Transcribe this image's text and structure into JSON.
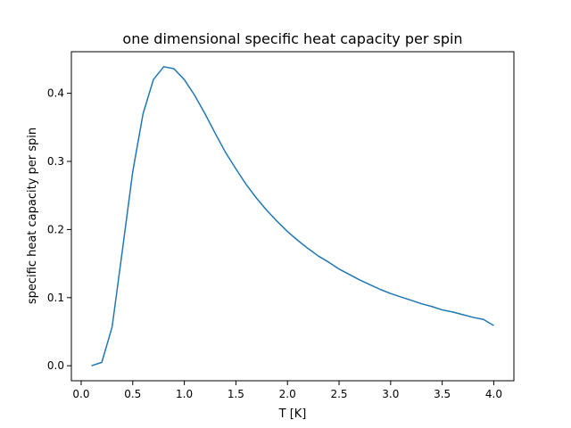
{
  "chart_data": {
    "type": "line",
    "title": "one dimensional specific heat capacity per spin",
    "xlabel": "T [K]",
    "ylabel": "specific heat capacity per spin",
    "xlim": [
      -0.095,
      4.195
    ],
    "ylim": [
      -0.022,
      0.461
    ],
    "xticks": [
      0.0,
      0.5,
      1.0,
      1.5,
      2.0,
      2.5,
      3.0,
      3.5,
      4.0
    ],
    "xtick_labels": [
      "0.0",
      "0.5",
      "1.0",
      "1.5",
      "2.0",
      "2.5",
      "3.0",
      "3.5",
      "4.0"
    ],
    "yticks": [
      0.0,
      0.1,
      0.2,
      0.3,
      0.4
    ],
    "ytick_labels": [
      "0.0",
      "0.1",
      "0.2",
      "0.3",
      "0.4"
    ],
    "grid": false,
    "series": [
      {
        "color": "#1f77b4",
        "x": [
          0.1,
          0.2,
          0.3,
          0.4,
          0.5,
          0.6,
          0.7,
          0.8,
          0.9,
          1.0,
          1.1,
          1.2,
          1.3,
          1.4,
          1.5,
          1.6,
          1.7,
          1.8,
          1.9,
          2.0,
          2.1,
          2.2,
          2.3,
          2.4,
          2.5,
          2.6,
          2.7,
          2.8,
          2.9,
          3.0,
          3.1,
          3.2,
          3.3,
          3.4,
          3.5,
          3.6,
          3.7,
          3.8,
          3.9,
          4.0
        ],
        "y": [
          0.0,
          0.005,
          0.057,
          0.17,
          0.285,
          0.37,
          0.42,
          0.439,
          0.436,
          0.42,
          0.397,
          0.37,
          0.341,
          0.313,
          0.289,
          0.266,
          0.246,
          0.228,
          0.212,
          0.197,
          0.184,
          0.172,
          0.161,
          0.152,
          0.142,
          0.134,
          0.126,
          0.119,
          0.112,
          0.106,
          0.101,
          0.096,
          0.091,
          0.087,
          0.082,
          0.079,
          0.075,
          0.071,
          0.068,
          0.059
        ]
      }
    ]
  }
}
